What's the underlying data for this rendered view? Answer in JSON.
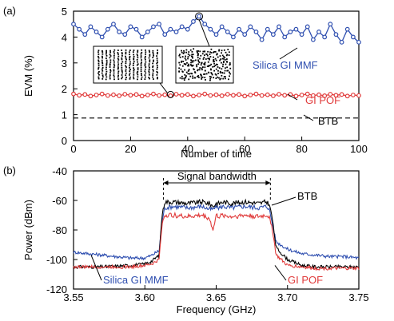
{
  "chart_data": [
    {
      "type": "line",
      "panel_label": "(a)",
      "xlabel": "Number of time",
      "ylabel": "EVM (%)",
      "xlim": [
        0,
        100
      ],
      "ylim": [
        0,
        5
      ],
      "xticks": [
        "0",
        "20",
        "40",
        "60",
        "80",
        "100"
      ],
      "yticks": [
        "0",
        "1",
        "2",
        "3",
        "4",
        "5"
      ],
      "grid": false,
      "series": [
        {
          "name": "Silica GI MMF",
          "color": "#2f4fb0",
          "marker": "circle",
          "x": [
            0,
            2,
            4,
            6,
            8,
            10,
            12,
            14,
            16,
            18,
            20,
            22,
            24,
            26,
            28,
            30,
            32,
            34,
            36,
            38,
            40,
            42,
            44,
            46,
            48,
            50,
            52,
            54,
            56,
            58,
            60,
            62,
            64,
            66,
            68,
            70,
            72,
            74,
            76,
            78,
            80,
            82,
            84,
            86,
            88,
            90,
            92,
            94,
            96,
            98,
            100
          ],
          "y": [
            4.5,
            4.3,
            4.1,
            4.4,
            4.2,
            4.0,
            4.3,
            4.5,
            4.2,
            4.1,
            4.4,
            4.3,
            4.0,
            4.2,
            4.4,
            4.5,
            4.1,
            4.3,
            4.2,
            4.4,
            4.3,
            4.6,
            4.8,
            4.5,
            4.3,
            4.1,
            4.4,
            4.2,
            4.0,
            4.3,
            4.1,
            4.4,
            4.2,
            3.9,
            4.3,
            4.1,
            4.4,
            4.0,
            4.2,
            4.3,
            4.1,
            4.4,
            3.9,
            4.2,
            4.0,
            4.5,
            4.1,
            3.8,
            4.3,
            4.0,
            3.8
          ]
        },
        {
          "name": "GI POF",
          "color": "#e03a3a",
          "marker": "circle",
          "x": [
            0,
            2,
            4,
            6,
            8,
            10,
            12,
            14,
            16,
            18,
            20,
            22,
            24,
            26,
            28,
            30,
            32,
            34,
            36,
            38,
            40,
            42,
            44,
            46,
            48,
            50,
            52,
            54,
            56,
            58,
            60,
            62,
            64,
            66,
            68,
            70,
            72,
            74,
            76,
            78,
            80,
            82,
            84,
            86,
            88,
            90,
            92,
            94,
            96,
            98,
            100
          ],
          "y": [
            1.8,
            1.75,
            1.78,
            1.72,
            1.76,
            1.8,
            1.74,
            1.77,
            1.73,
            1.79,
            1.75,
            1.78,
            1.72,
            1.76,
            1.8,
            1.74,
            1.77,
            1.73,
            1.79,
            1.75,
            1.78,
            1.72,
            1.76,
            1.8,
            1.74,
            1.77,
            1.73,
            1.79,
            1.75,
            1.78,
            1.72,
            1.76,
            1.8,
            1.74,
            1.77,
            1.73,
            1.79,
            1.75,
            1.78,
            1.72,
            1.76,
            1.8,
            1.74,
            1.77,
            1.73,
            1.79,
            1.75,
            1.78,
            1.72,
            1.76,
            1.74
          ]
        },
        {
          "name": "BTB",
          "color": "#000000",
          "dash": true,
          "x": [
            0,
            100
          ],
          "y": [
            0.87,
            0.87
          ]
        }
      ],
      "insets": [
        "constellation-low-evm",
        "constellation-high-evm"
      ]
    },
    {
      "type": "line",
      "panel_label": "(b)",
      "xlabel": "Frequency (GHz)",
      "ylabel": "Power (dBm)",
      "xlim": [
        3.55,
        3.75
      ],
      "ylim": [
        -120,
        -40
      ],
      "xticks": [
        "3.55",
        "3.60",
        "3.65",
        "3.70",
        "3.75"
      ],
      "yticks": [
        "-40",
        "-60",
        "-80",
        "-100",
        "-120"
      ],
      "grid": false,
      "annotation": "Signal bandwidth",
      "bandwidth": [
        3.613,
        3.688
      ],
      "series": [
        {
          "name": "BTB",
          "color": "#000000",
          "x": [
            3.55,
            3.56,
            3.57,
            3.58,
            3.59,
            3.6,
            3.605,
            3.61,
            3.612,
            3.614,
            3.62,
            3.63,
            3.64,
            3.645,
            3.648,
            3.65,
            3.652,
            3.655,
            3.66,
            3.67,
            3.68,
            3.685,
            3.687,
            3.689,
            3.692,
            3.7,
            3.71,
            3.72,
            3.73,
            3.74,
            3.75
          ],
          "y": [
            -105,
            -105,
            -105,
            -104.5,
            -104,
            -103,
            -101,
            -97,
            -70,
            -61,
            -61,
            -62,
            -61,
            -62,
            -64,
            -62,
            -62,
            -61,
            -62,
            -61,
            -62,
            -61,
            -62,
            -70,
            -92,
            -100,
            -104,
            -105,
            -105,
            -105,
            -105
          ]
        },
        {
          "name": "Silica GI MMF",
          "color": "#2f4fb0",
          "x": [
            3.55,
            3.56,
            3.57,
            3.58,
            3.59,
            3.6,
            3.605,
            3.61,
            3.612,
            3.614,
            3.62,
            3.63,
            3.64,
            3.645,
            3.648,
            3.65,
            3.652,
            3.655,
            3.66,
            3.67,
            3.68,
            3.685,
            3.687,
            3.689,
            3.692,
            3.7,
            3.71,
            3.72,
            3.73,
            3.74,
            3.75
          ],
          "y": [
            -95,
            -96,
            -97,
            -98,
            -99,
            -99,
            -97,
            -94,
            -74,
            -65,
            -64,
            -65,
            -64,
            -66,
            -66,
            -64,
            -65,
            -64,
            -65,
            -64,
            -65,
            -64,
            -65,
            -74,
            -88,
            -93,
            -96,
            -97,
            -98,
            -98,
            -99
          ]
        },
        {
          "name": "GI POF",
          "color": "#e03a3a",
          "x": [
            3.55,
            3.56,
            3.57,
            3.58,
            3.59,
            3.6,
            3.605,
            3.61,
            3.612,
            3.614,
            3.62,
            3.63,
            3.64,
            3.645,
            3.648,
            3.65,
            3.652,
            3.655,
            3.66,
            3.67,
            3.68,
            3.685,
            3.687,
            3.689,
            3.692,
            3.7,
            3.71,
            3.72,
            3.73,
            3.74,
            3.75
          ],
          "y": [
            -105,
            -105,
            -105,
            -105,
            -105,
            -104,
            -103,
            -100,
            -76,
            -70,
            -70,
            -71,
            -70,
            -72,
            -80,
            -70,
            -71,
            -70,
            -71,
            -70,
            -71,
            -70,
            -71,
            -77,
            -97,
            -104,
            -105,
            -106,
            -106,
            -106,
            -106
          ]
        }
      ]
    }
  ]
}
